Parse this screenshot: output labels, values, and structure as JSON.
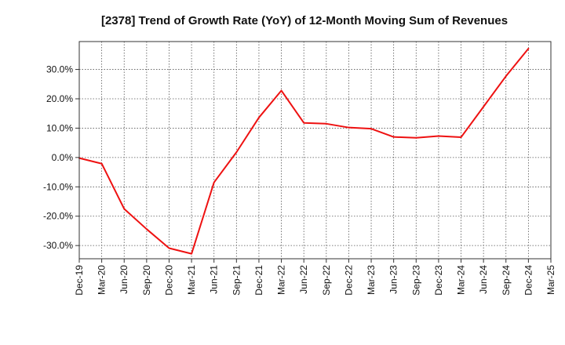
{
  "chart_data": {
    "type": "line",
    "title": "[2378]  Trend of Growth Rate (YoY) of 12-Month Moving Sum of Revenues",
    "xlabel": "",
    "ylabel": "",
    "x_ticks": [
      "Dec-19",
      "Mar-20",
      "Jun-20",
      "Sep-20",
      "Dec-20",
      "Mar-21",
      "Jun-21",
      "Sep-21",
      "Dec-21",
      "Mar-22",
      "Jun-22",
      "Sep-22",
      "Dec-22",
      "Mar-23",
      "Jun-23",
      "Sep-23",
      "Dec-23",
      "Mar-24",
      "Jun-24",
      "Sep-24",
      "Dec-24",
      "Mar-25"
    ],
    "y_ticks": [
      30,
      20,
      10,
      0,
      -10,
      -20,
      -30
    ],
    "y_tick_labels": [
      "30.0%",
      "20.0%",
      "10.0%",
      "0.0%",
      "-10.0%",
      "-20.0%",
      "-30.0%"
    ],
    "ylim": [
      -34.5,
      39.5
    ],
    "grid": true,
    "series": [
      {
        "color": "#ee1111",
        "x": [
          "Dec-19",
          "Mar-20",
          "Jun-20",
          "Sep-20",
          "Dec-20",
          "Mar-21",
          "Jun-21",
          "Sep-21",
          "Dec-21",
          "Mar-22",
          "Jun-22",
          "Sep-22",
          "Dec-22",
          "Mar-23",
          "Jun-23",
          "Sep-23",
          "Dec-23",
          "Mar-24",
          "Jun-24",
          "Sep-24",
          "Dec-24"
        ],
        "values": [
          -0.2,
          -2.1,
          -17.5,
          -24.4,
          -30.9,
          -32.8,
          -8.5,
          1.8,
          13.6,
          22.8,
          11.8,
          11.5,
          10.2,
          9.8,
          7.0,
          6.7,
          7.3,
          6.9,
          17.3,
          27.7,
          37.1
        ]
      }
    ]
  }
}
